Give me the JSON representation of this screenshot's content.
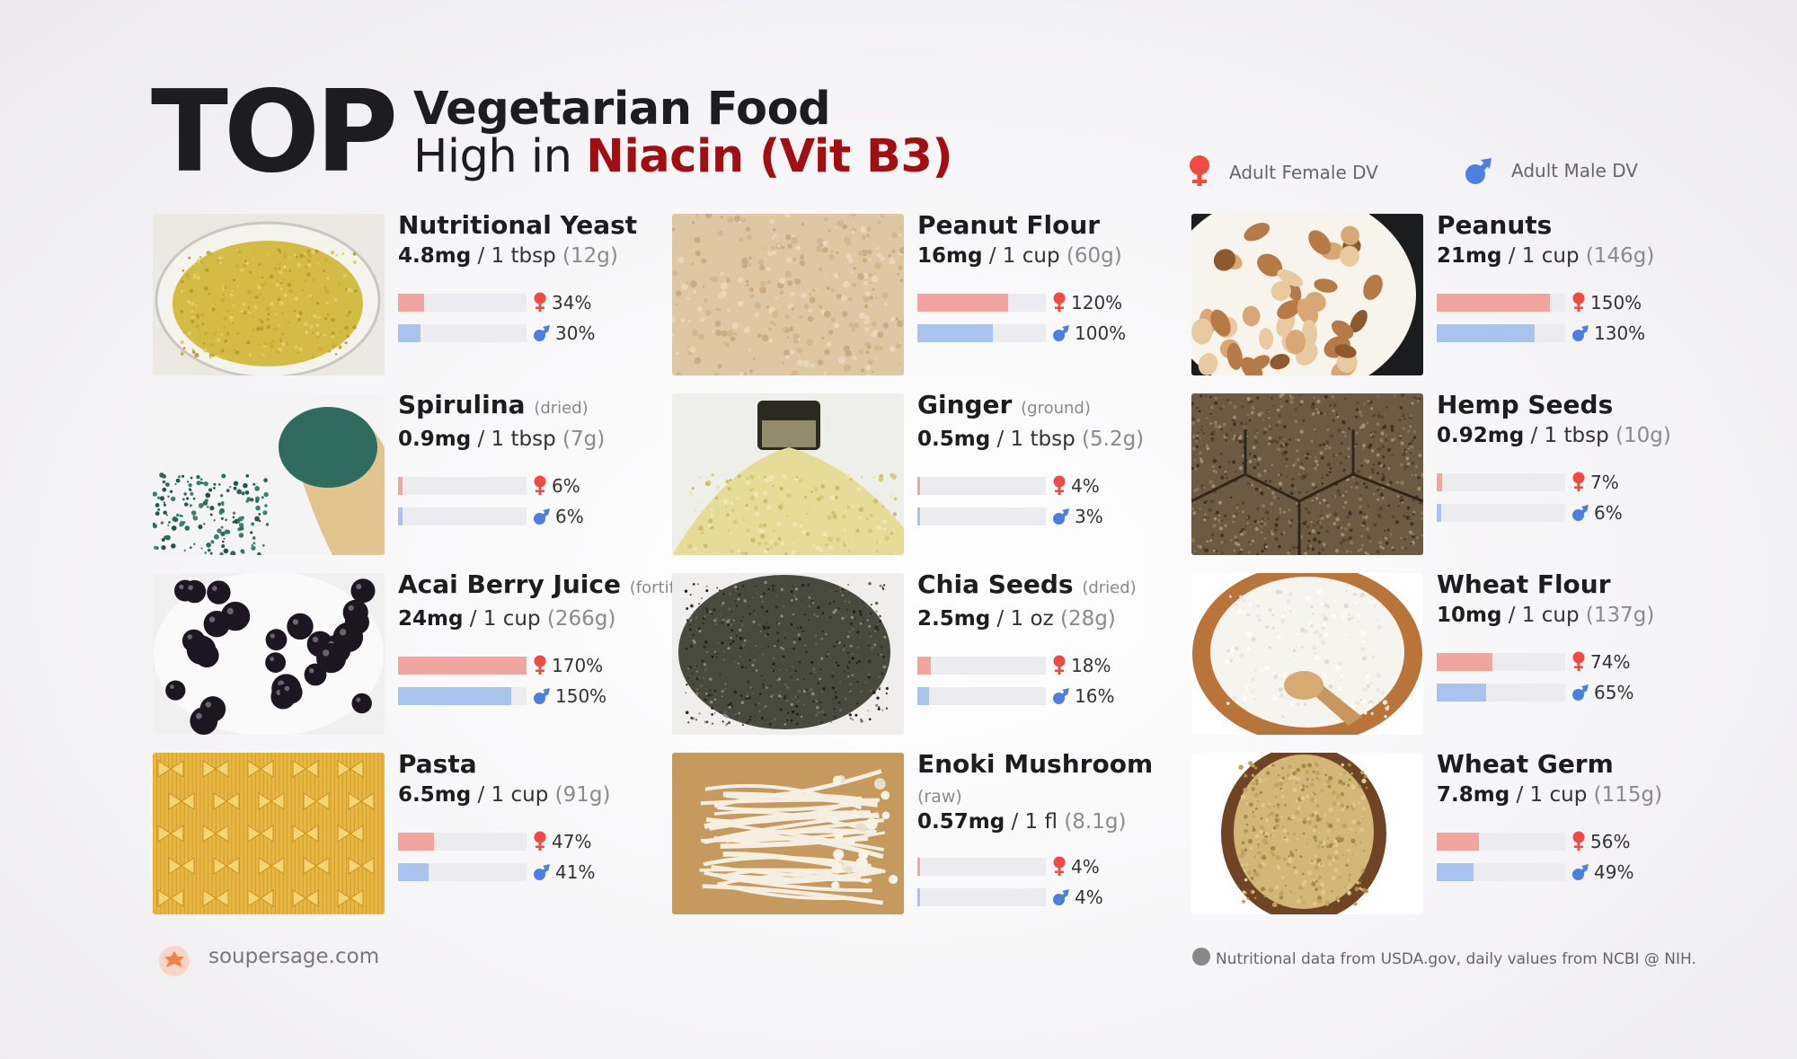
{
  "header": {
    "top_word": "TOP",
    "title_line1": "Vegetarian Food",
    "title_line2_prefix": "High in ",
    "title_line2_highlight": "Niacin (Vit B3)"
  },
  "legend": {
    "female_label": "Adult Female DV",
    "male_label": "Adult Male DV",
    "female_color": "#f2a59e",
    "male_color": "#a9c3ef",
    "female_icon_color": "#ef4b43",
    "male_icon_color": "#4b7fe0"
  },
  "chart_data": {
    "type": "bar",
    "categories": [
      "Nutritional Yeast",
      "Spirulina",
      "Acai Berry Juice",
      "Pasta",
      "Peanut Flour",
      "Ginger",
      "Chia Seeds",
      "Enoki Mushroom",
      "Peanuts",
      "Hemp Seeds",
      "Wheat Flour",
      "Wheat Germ"
    ],
    "series": [
      {
        "name": "Adult Female DV",
        "values": [
          34,
          6,
          170,
          47,
          120,
          4,
          18,
          4,
          150,
          7,
          74,
          56
        ]
      },
      {
        "name": "Adult Male DV",
        "values": [
          30,
          6,
          150,
          41,
          100,
          3,
          16,
          4,
          130,
          6,
          65,
          49
        ]
      }
    ]
  },
  "foods": [
    {
      "name": "Nutritional Yeast",
      "qualifier": "",
      "amount": "4.8mg",
      "serving": "/ 1 tbsp",
      "weight": "(12g)",
      "female": 34,
      "male": 30,
      "female_label": "34%",
      "male_label": "30%",
      "photo": "yeast",
      "qual_newline": false
    },
    {
      "name": "Spirulina",
      "qualifier": "(dried)",
      "amount": "0.9mg",
      "serving": "/ 1 tbsp",
      "weight": "(7g)",
      "female": 6,
      "male": 6,
      "female_label": "6%",
      "male_label": "6%",
      "photo": "spirulina",
      "qual_newline": false
    },
    {
      "name": "Acai Berry Juice",
      "qualifier": "(fortified)",
      "amount": "24mg",
      "serving": "/ 1 cup",
      "weight": "(266g)",
      "female": 170,
      "male": 150,
      "female_label": "170%",
      "male_label": "150%",
      "photo": "acai",
      "qual_newline": false
    },
    {
      "name": "Pasta",
      "qualifier": "",
      "amount": "6.5mg",
      "serving": "/ 1 cup",
      "weight": "(91g)",
      "female": 47,
      "male": 41,
      "female_label": "47%",
      "male_label": "41%",
      "photo": "pasta",
      "qual_newline": false
    },
    {
      "name": "Peanut Flour",
      "qualifier": "",
      "amount": "16mg",
      "serving": "/ 1 cup",
      "weight": "(60g)",
      "female": 120,
      "male": 100,
      "female_label": "120%",
      "male_label": "100%",
      "photo": "peanutflour",
      "qual_newline": false
    },
    {
      "name": "Ginger",
      "qualifier": "(ground)",
      "amount": "0.5mg",
      "serving": "/ 1 tbsp",
      "weight": "(5.2g)",
      "female": 4,
      "male": 3,
      "female_label": "4%",
      "male_label": "3%",
      "photo": "ginger",
      "qual_newline": false
    },
    {
      "name": "Chia Seeds",
      "qualifier": "(dried)",
      "amount": "2.5mg",
      "serving": "/ 1 oz",
      "weight": "(28g)",
      "female": 18,
      "male": 16,
      "female_label": "18%",
      "male_label": "16%",
      "photo": "chia",
      "qual_newline": false
    },
    {
      "name": "Enoki Mushroom",
      "qualifier": "(raw)",
      "amount": "0.57mg",
      "serving": "/ 1 fl",
      "weight": "(8.1g)",
      "female": 4,
      "male": 4,
      "female_label": "4%",
      "male_label": "4%",
      "photo": "enoki",
      "qual_newline": true
    },
    {
      "name": "Peanuts",
      "qualifier": "",
      "amount": "21mg",
      "serving": "/ 1 cup",
      "weight": "(146g)",
      "female": 150,
      "male": 130,
      "female_label": "150%",
      "male_label": "130%",
      "photo": "peanuts",
      "qual_newline": false
    },
    {
      "name": "Hemp Seeds",
      "qualifier": "",
      "amount": "0.92mg",
      "serving": "/ 1 tbsp",
      "weight": "(10g)",
      "female": 7,
      "male": 6,
      "female_label": "7%",
      "male_label": "6%",
      "photo": "hemp",
      "qual_newline": false
    },
    {
      "name": "Wheat Flour",
      "qualifier": "",
      "amount": "10mg",
      "serving": "/ 1 cup",
      "weight": "(137g)",
      "female": 74,
      "male": 65,
      "female_label": "74%",
      "male_label": "65%",
      "photo": "wheatflour",
      "qual_newline": false
    },
    {
      "name": "Wheat Germ",
      "qualifier": "",
      "amount": "7.8mg",
      "serving": "/ 1 cup",
      "weight": "(115g)",
      "female": 56,
      "male": 49,
      "female_label": "56%",
      "male_label": "49%",
      "photo": "wheatgerm",
      "qual_newline": false
    }
  ],
  "footer": {
    "site": "soupersage.com",
    "note": "Nutritional data from USDA.gov, daily values from NCBI @ NIH."
  }
}
